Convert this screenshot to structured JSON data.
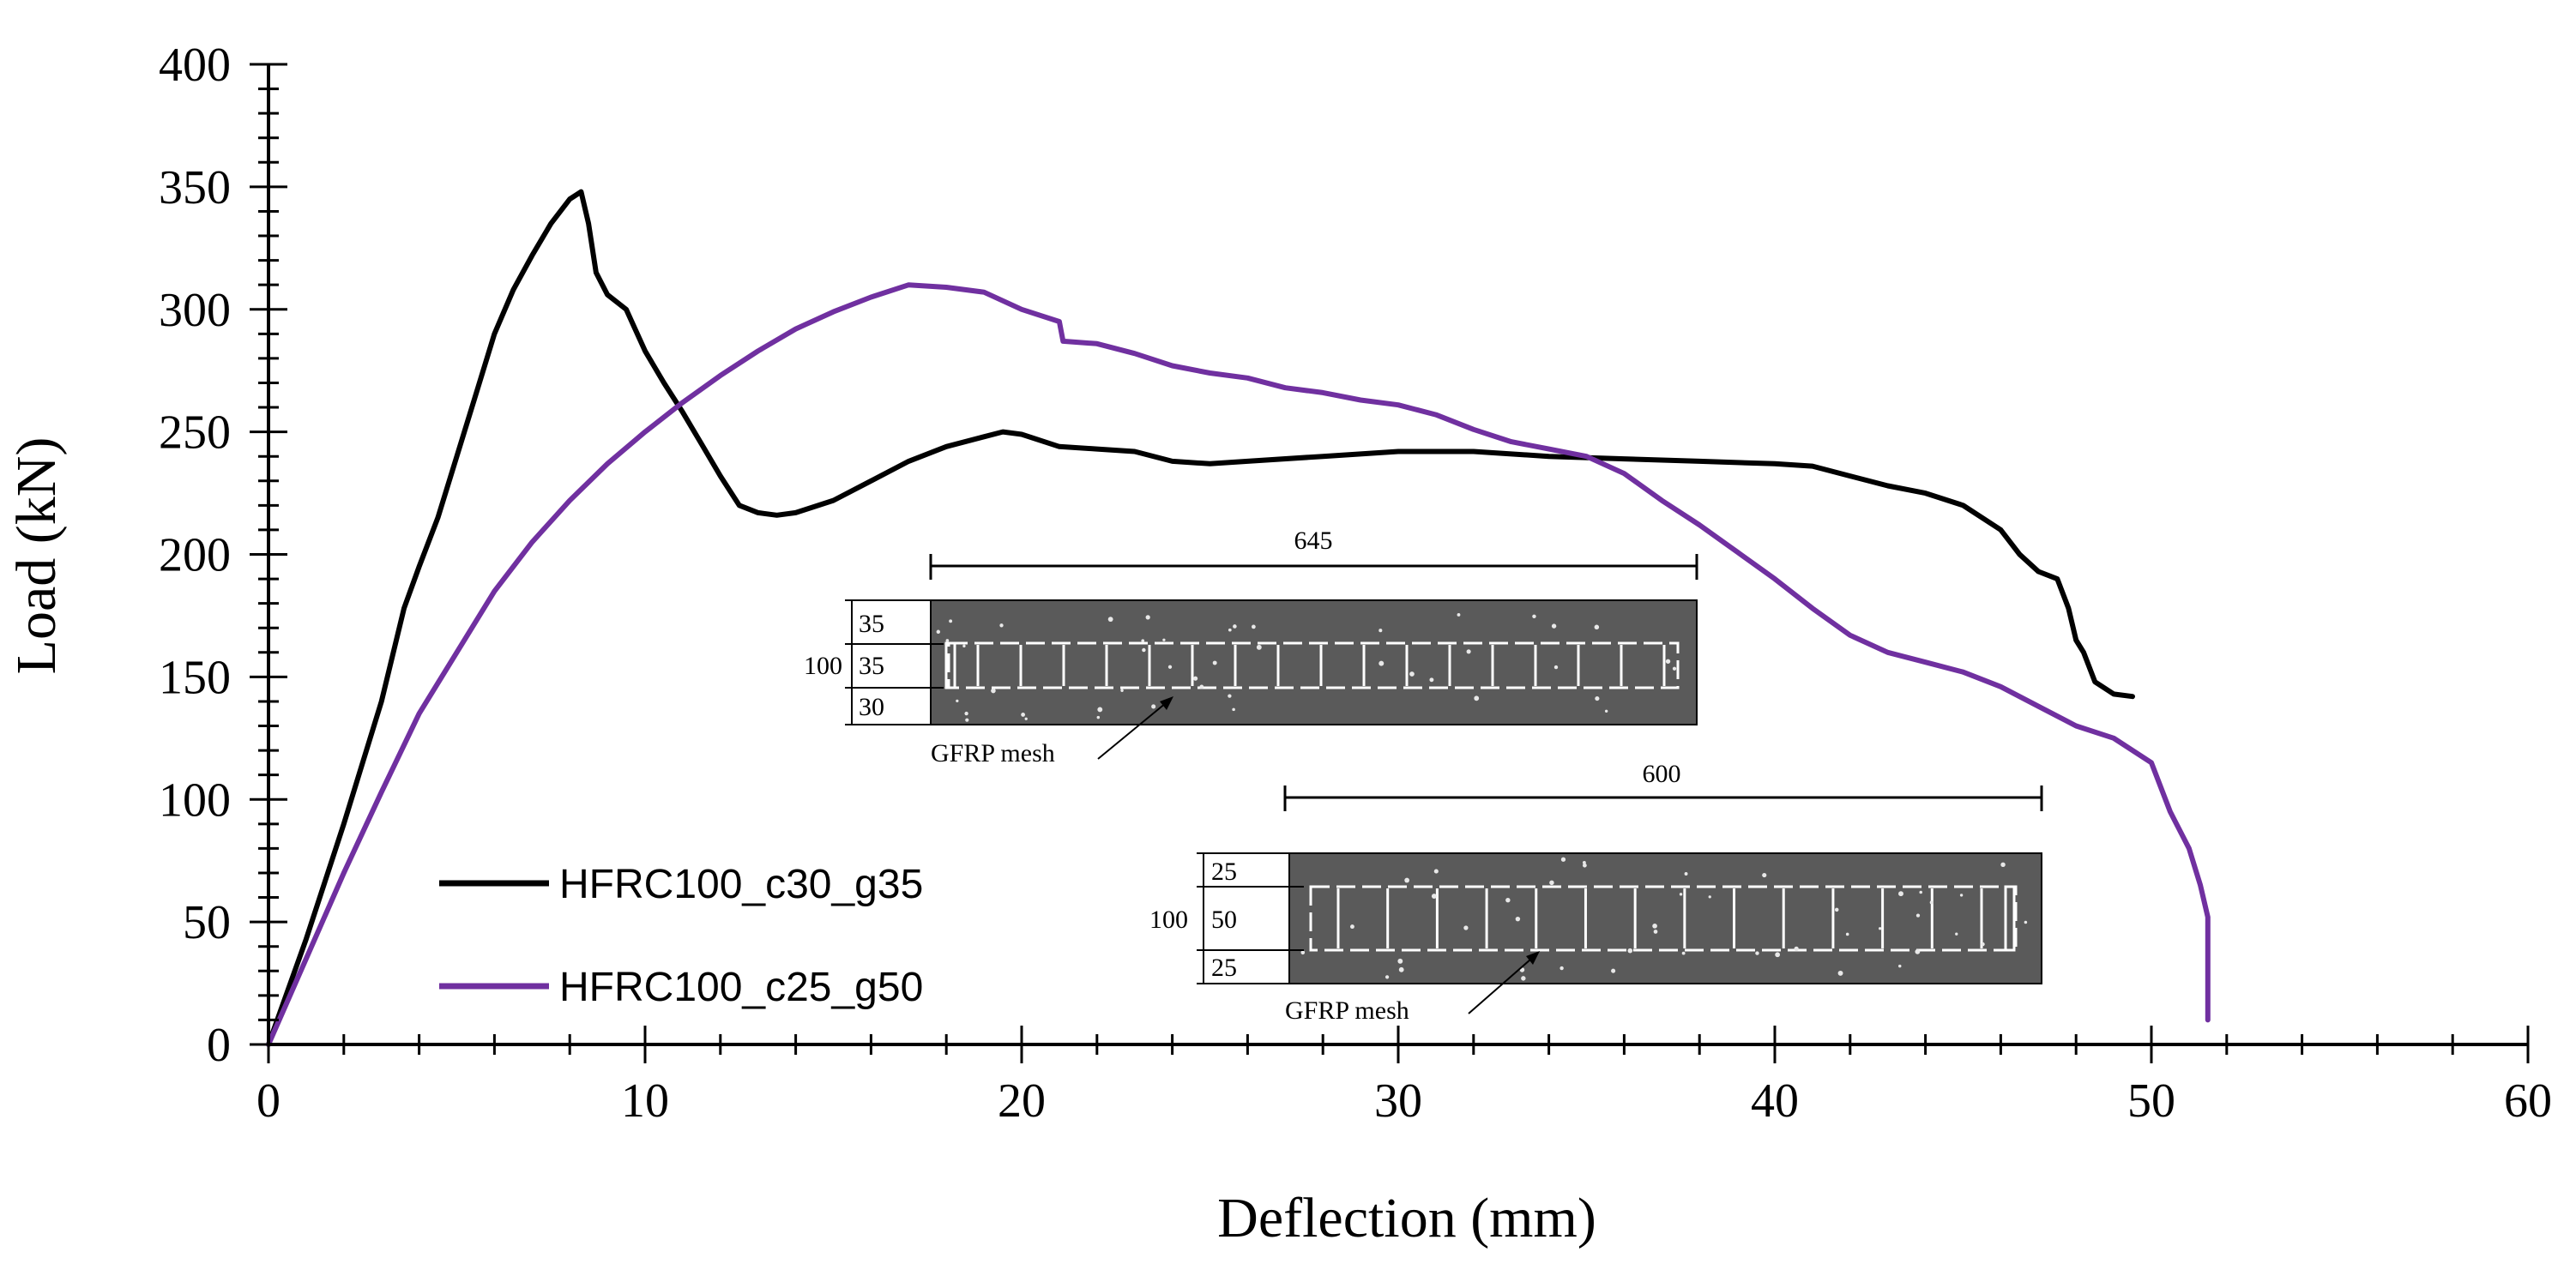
{
  "chart_data": {
    "type": "line",
    "title": "",
    "xlabel": "Deflection (mm)",
    "ylabel": "Load (kN)",
    "xlim": [
      0,
      60
    ],
    "ylim": [
      0,
      400
    ],
    "xticks": [
      0,
      10,
      20,
      30,
      40,
      50,
      60
    ],
    "yticks": [
      0,
      50,
      100,
      150,
      200,
      250,
      300,
      350,
      400
    ],
    "x_minor_step": 2,
    "y_minor_step": 10,
    "grid": false,
    "legend_position": "lower-left",
    "series": [
      {
        "name": "HFRC100_c30_g35",
        "color": "#000000",
        "x": [
          0,
          1,
          2,
          3,
          3.6,
          4,
          4.5,
          5,
          5.5,
          6,
          6.5,
          7,
          7.5,
          8,
          8.3,
          8.5,
          8.7,
          9,
          9.5,
          10,
          10.5,
          11,
          11.5,
          12,
          12.5,
          13,
          13.5,
          14,
          15,
          16,
          17,
          18,
          19,
          19.5,
          20,
          21,
          22,
          23,
          24,
          25,
          26,
          28,
          30,
          32,
          34,
          36,
          38,
          40,
          41,
          42,
          43,
          44,
          45,
          46,
          46.5,
          47,
          47.5,
          47.8,
          48,
          48.2,
          48.5,
          49,
          49.5
        ],
        "y": [
          0,
          43,
          90,
          140,
          178,
          195,
          215,
          240,
          265,
          290,
          308,
          322,
          335,
          345,
          348,
          335,
          315,
          306,
          300,
          283,
          270,
          258,
          245,
          232,
          220,
          217,
          216,
          217,
          222,
          230,
          238,
          244,
          248,
          250,
          249,
          244,
          243,
          242,
          238,
          237,
          238,
          240,
          242,
          242,
          240,
          239,
          238,
          237,
          236,
          232,
          228,
          225,
          220,
          210,
          200,
          193,
          190,
          178,
          165,
          160,
          148,
          143,
          142
        ],
        "legend_label": "HFRC100_c30_g35"
      },
      {
        "name": "HFRC100_c25_g50",
        "color": "#7030A0",
        "x": [
          0,
          1,
          2,
          3,
          4,
          5,
          6,
          7,
          8,
          9,
          10,
          11,
          12,
          13,
          14,
          15,
          16,
          17,
          18,
          19,
          20,
          21,
          21.1,
          22,
          23,
          24,
          25,
          26,
          27,
          28,
          29,
          30,
          31,
          32,
          33,
          34,
          35,
          36,
          37,
          38,
          39,
          40,
          41,
          42,
          43,
          44,
          45,
          46,
          47,
          48,
          49,
          50,
          50.5,
          51,
          51.3,
          51.5,
          51.5
        ],
        "y": [
          0,
          35,
          70,
          103,
          135,
          160,
          185,
          205,
          222,
          237,
          250,
          262,
          273,
          283,
          292,
          299,
          305,
          310,
          309,
          307,
          300,
          295,
          287,
          286,
          282,
          277,
          274,
          272,
          268,
          266,
          263,
          261,
          257,
          251,
          246,
          243,
          240,
          233,
          222,
          212,
          201,
          190,
          178,
          167,
          160,
          156,
          152,
          146,
          138,
          130,
          125,
          115,
          95,
          80,
          65,
          52,
          10
        ],
        "legend_label": "HFRC100_c25_g50"
      }
    ]
  },
  "insets": [
    {
      "span_label": "645",
      "dims_total": "100",
      "dims": [
        "35",
        "35",
        "30"
      ],
      "mesh_label": "GFRP mesh"
    },
    {
      "span_label": "600",
      "dims_total": "100",
      "dims": [
        "25",
        "50",
        "25"
      ],
      "mesh_label": "GFRP mesh"
    }
  ]
}
